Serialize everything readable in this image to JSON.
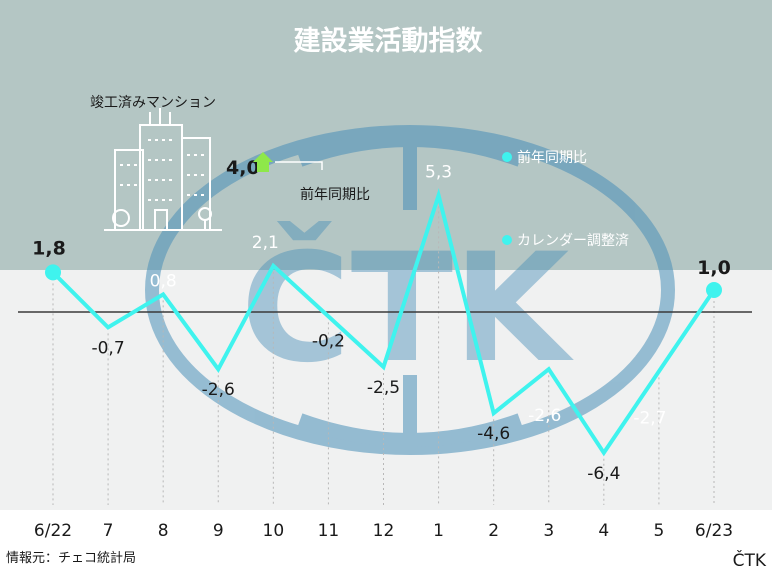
{
  "title": "建設業活動指数",
  "colors": {
    "header_bg": "#b4c6c4",
    "plot_bg": "#f0f1f1",
    "line": "#3ff3ee",
    "point": "#3ff3ee",
    "zero_line": "#3a3a3a",
    "logo": "#4a8fb8"
  },
  "inset": {
    "label": "竣工済みマンション",
    "value": "4,0",
    "arrow": "up",
    "sub_label": "前年同期比",
    "icon": "apartment-building-icon"
  },
  "legend": {
    "items": [
      {
        "label": "前年同期比",
        "marker": "dot"
      },
      {
        "label": "カレンダー調整済",
        "marker": "dot"
      }
    ]
  },
  "watermark": "ČTK",
  "source": "情報元：チェコ統計局",
  "brand": "ČTK",
  "chart_data": {
    "type": "line",
    "title": "建設業活動指数",
    "categories": [
      "6/22",
      "7",
      "8",
      "9",
      "10",
      "11",
      "12",
      "1",
      "2",
      "3",
      "4",
      "5",
      "6/23"
    ],
    "values": [
      1.8,
      -0.7,
      0.8,
      -2.6,
      2.1,
      -0.2,
      -2.5,
      5.3,
      -4.6,
      -2.6,
      -6.4,
      -2.7,
      1.0
    ],
    "value_labels": [
      "1,8",
      "-0,7",
      "0,8",
      "-2,6",
      "2,1",
      "-0,2",
      "-2,5",
      "5,3",
      "-4,6",
      "-2,6",
      "-6,4",
      "-2,7",
      "1,0"
    ],
    "ylim": [
      -8,
      8
    ],
    "grid": "vertical dotted",
    "zero_line": true
  }
}
